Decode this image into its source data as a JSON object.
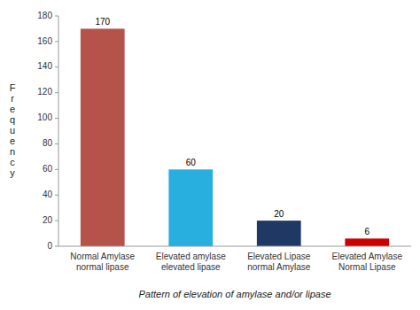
{
  "chart_data": {
    "type": "bar",
    "categories": [
      "Normal Amylase\nnormal lipase",
      "Elevated amylase\nelevated lipase",
      "Elevated Lipase\nnormal Amylase",
      "Elevated Amylase\nNormal Lipase"
    ],
    "values": [
      170,
      60,
      20,
      6
    ],
    "value_labels": [
      "170",
      "60",
      "20",
      "6"
    ],
    "colors": [
      "#b5524a",
      "#29aee0",
      "#1f3864",
      "#cc0000"
    ],
    "xlabel": "Pattern of elevation of amylase and/or lipase",
    "ylabel": "Frequency",
    "ylim": [
      0,
      180
    ],
    "yticks": [
      0,
      20,
      40,
      60,
      80,
      100,
      120,
      140,
      160,
      180
    ],
    "data_labels": true,
    "grid": false
  }
}
